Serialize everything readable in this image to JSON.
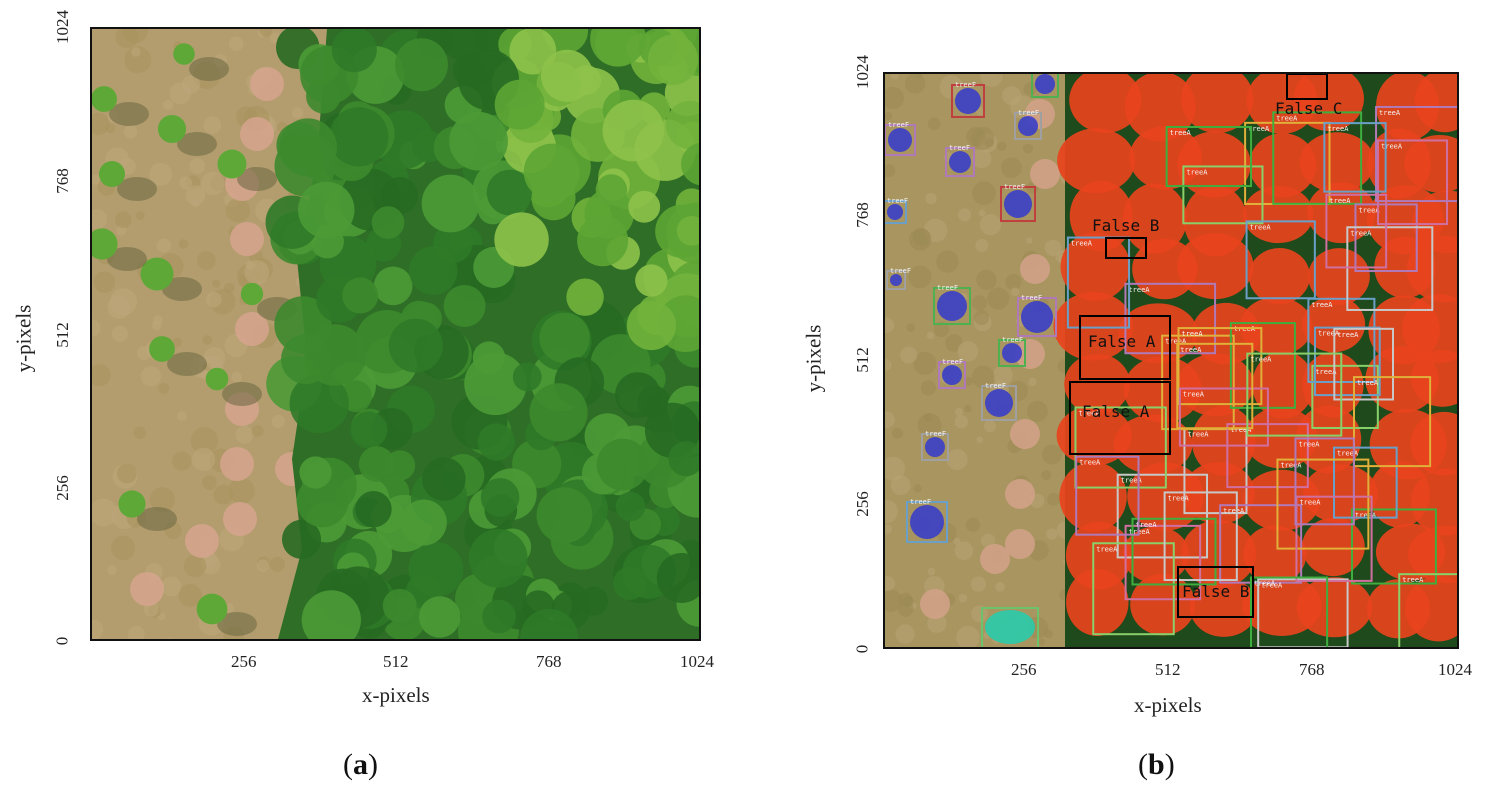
{
  "panels": [
    {
      "id": "a",
      "caption": "a",
      "x_axis_label": "x-pixels",
      "y_axis_label": "y-pixels",
      "x_ticks": [
        "256",
        "512",
        "768",
        "1024"
      ],
      "y_ticks": [
        "0",
        "256",
        "512",
        "768",
        "1024"
      ],
      "image_description_icon": "aerial-orchard-photo"
    },
    {
      "id": "b",
      "caption": "b",
      "x_axis_label": "x-pixels",
      "y_axis_label": "y-pixels",
      "x_ticks": [
        "256",
        "512",
        "768",
        "1024"
      ],
      "y_ticks": [
        "0",
        "256",
        "512",
        "768",
        "1024"
      ],
      "image_description_icon": "segmentation-overlay-photo",
      "class_labels": [
        "treeA",
        "treeF"
      ],
      "annotations": [
        "False A",
        "False A",
        "False B",
        "False B",
        "False C"
      ],
      "colors": {
        "treeA": "#e8431c",
        "treeF": "#3a3ec8",
        "special": "#2fc8a8",
        "annotation_box": "#000000"
      }
    }
  ]
}
